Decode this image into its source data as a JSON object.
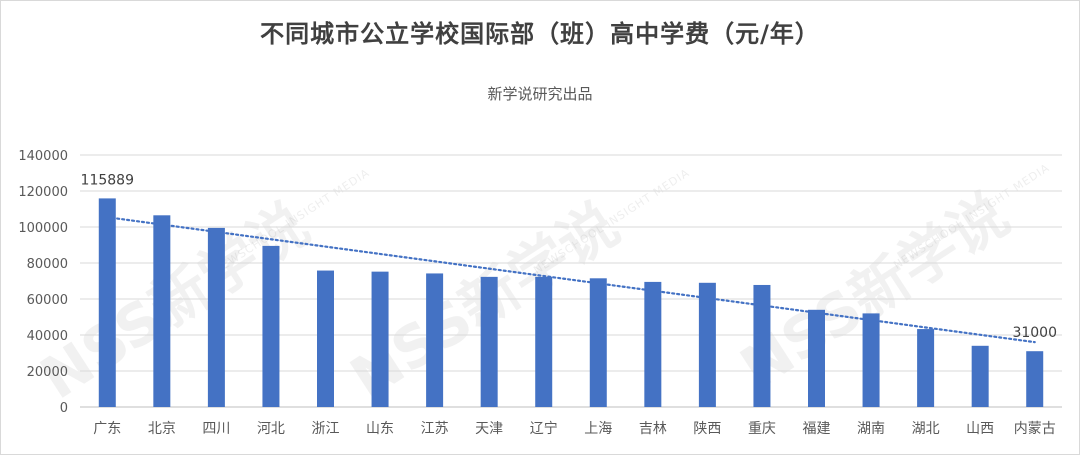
{
  "chart_data": {
    "type": "bar",
    "title": "不同城市公立学校国际部（班）高中学费（元/年）",
    "subtitle": "新学说研究出品",
    "categories": [
      "广东",
      "北京",
      "四川",
      "河北",
      "浙江",
      "山东",
      "江苏",
      "天津",
      "辽宁",
      "上海",
      "吉林",
      "陕西",
      "重庆",
      "福建",
      "湖南",
      "湖北",
      "山西",
      "内蒙古"
    ],
    "values": [
      115889,
      106500,
      99500,
      89500,
      75800,
      75200,
      74200,
      72300,
      72300,
      71500,
      69500,
      69000,
      67800,
      54000,
      52000,
      43300,
      34000,
      31000
    ],
    "data_labels": [
      {
        "index": 0,
        "text": "115889"
      },
      {
        "index": 17,
        "text": "31000"
      }
    ],
    "ylim": [
      0,
      140000
    ],
    "yticks": [
      0,
      20000,
      40000,
      60000,
      80000,
      100000,
      120000,
      140000
    ],
    "grid": true,
    "trendline": "linear",
    "bar_color": "#4472C4",
    "trend_color": "#4472C4"
  },
  "watermark": {
    "text": "NSS新学说",
    "subtext": "NEWSCHOOL INSIGHT MEDIA"
  }
}
